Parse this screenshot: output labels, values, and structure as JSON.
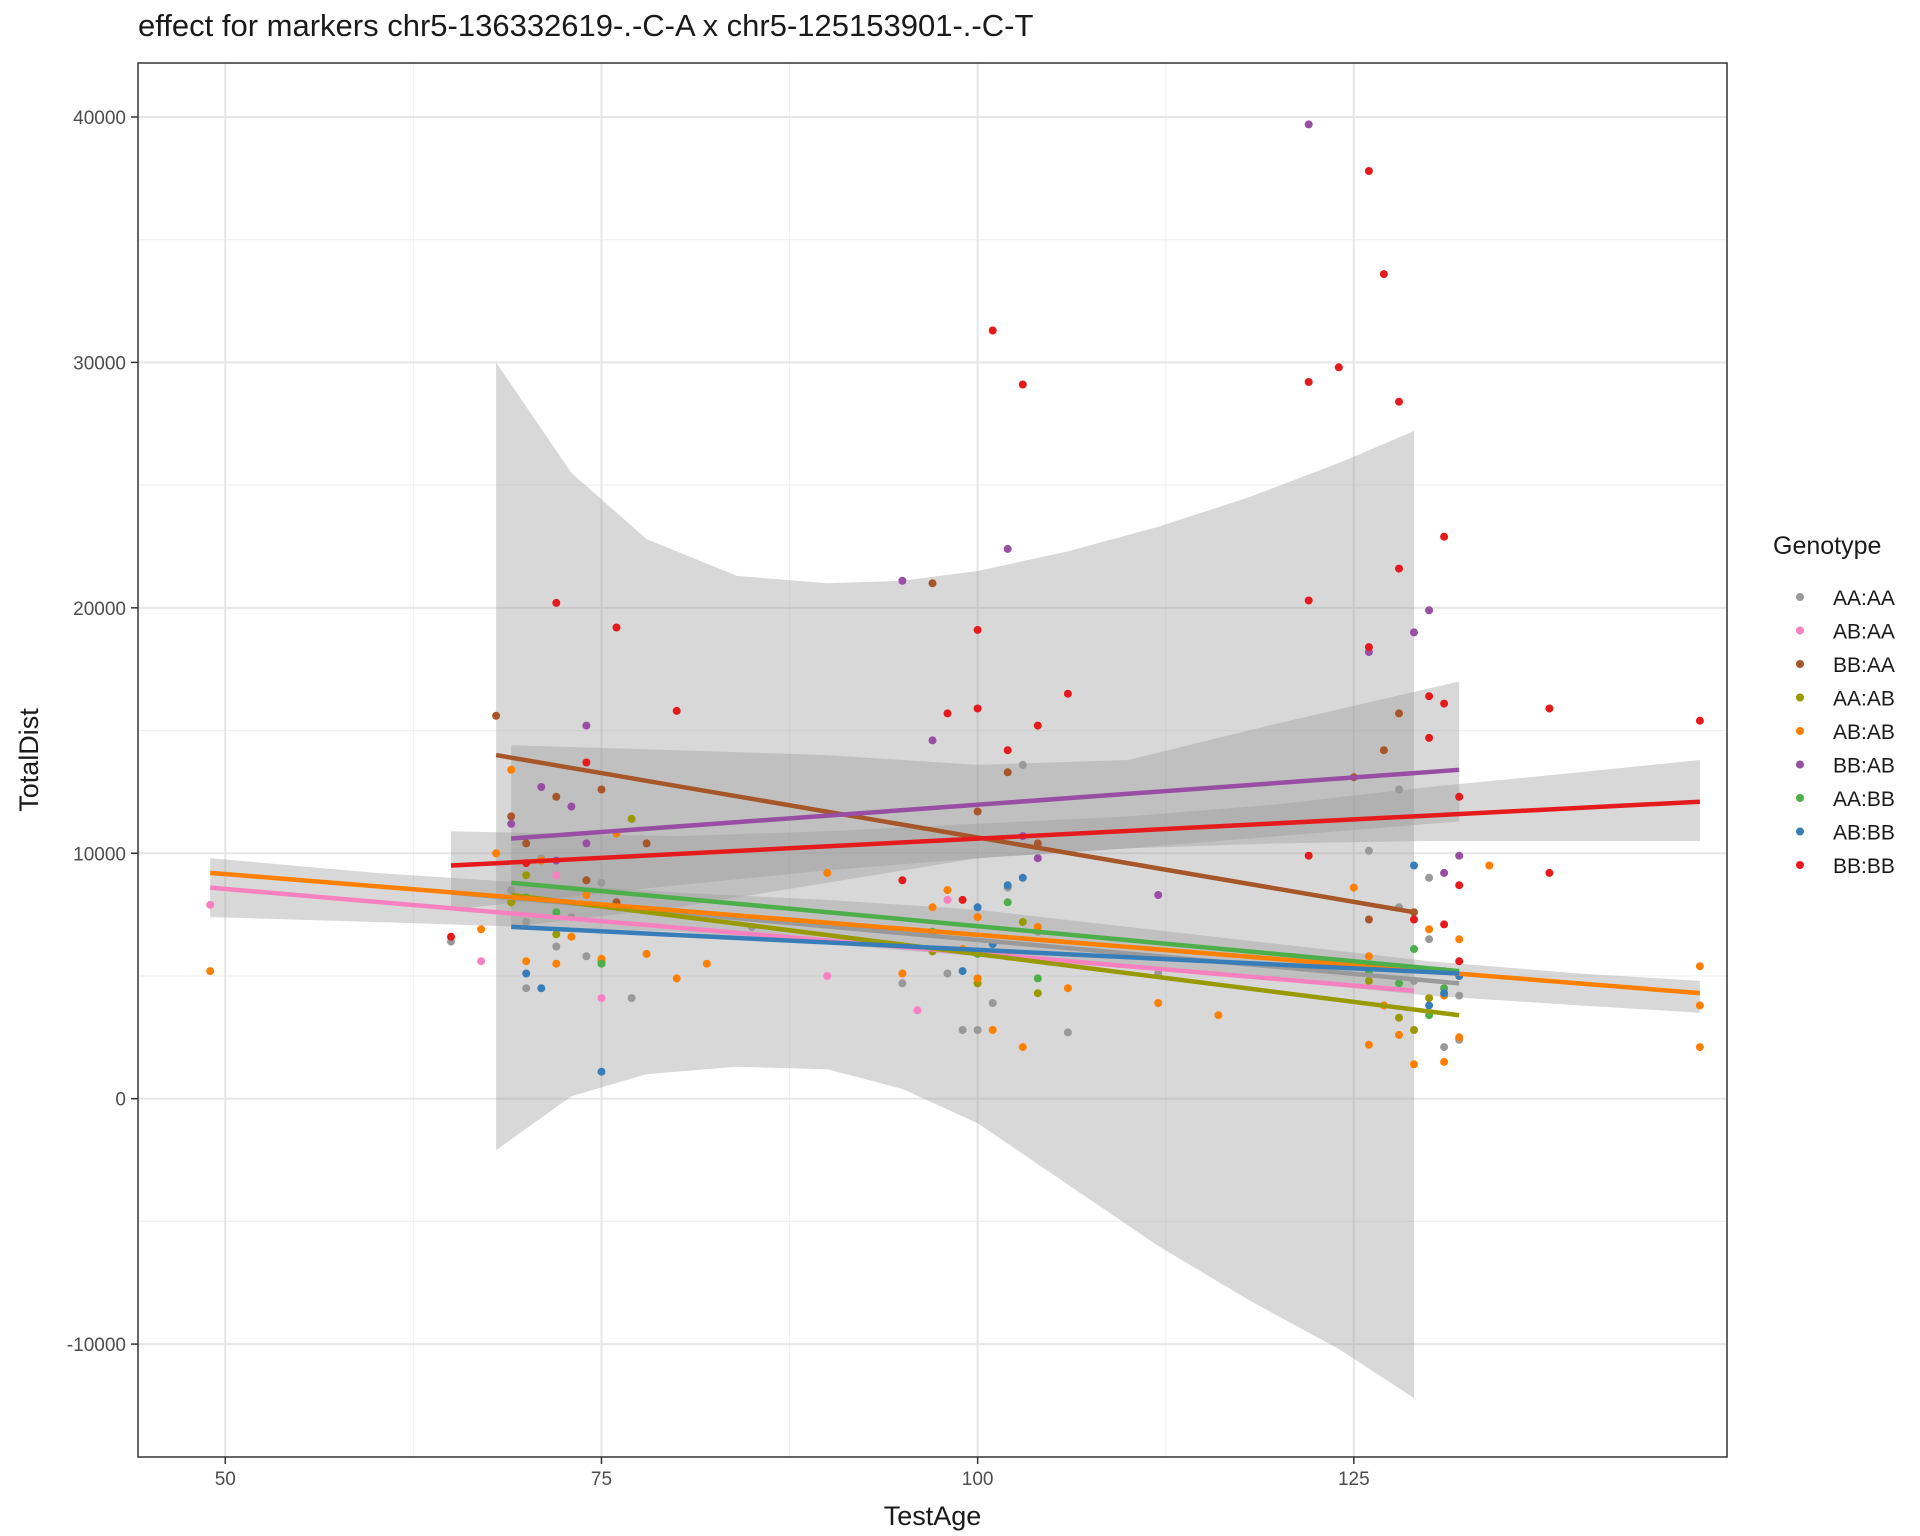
{
  "chart_data": {
    "type": "scatter",
    "title": "effect for markers chr5-136332619-.-C-A x chr5-125153901-.-C-T",
    "xlabel": "TestAge",
    "ylabel": "TotalDist",
    "xlim": [
      44.2,
      149.8
    ],
    "ylim": [
      -14600,
      42200
    ],
    "x_ticks": [
      50,
      75,
      100,
      125
    ],
    "x_tick_labels": [
      "50",
      "75",
      "100",
      "125"
    ],
    "y_ticks": [
      -10000,
      0,
      10000,
      20000,
      30000,
      40000
    ],
    "y_tick_labels": [
      "-10000",
      "0",
      "10000",
      "20000",
      "30000",
      "40000"
    ],
    "grid": true,
    "legend_position": "right",
    "legend_title": "Genotype",
    "confidence_bands": [
      {
        "x": [
          68,
          73,
          78,
          84,
          90,
          95,
          100,
          106,
          112,
          118,
          124,
          129
        ],
        "upper": [
          30000,
          25500,
          22800,
          21300,
          21000,
          21100,
          21500,
          22300,
          23300,
          24500,
          25900,
          27200
        ],
        "lower": [
          -2100,
          100,
          1000,
          1300,
          1200,
          400,
          -1000,
          -3500,
          -6000,
          -8200,
          -10200,
          -12200
        ]
      },
      {
        "x": [
          69,
          80,
          90,
          100,
          110,
          120,
          132
        ],
        "upper": [
          14400,
          14200,
          14000,
          13600,
          13800,
          15300,
          17000
        ],
        "lower": [
          7000,
          7800,
          8800,
          9800,
          10200,
          10700,
          11300
        ]
      },
      {
        "x": [
          49,
          60,
          70,
          80,
          90,
          100,
          110,
          120,
          130,
          140,
          148
        ],
        "upper": [
          9800,
          9200,
          8800,
          8400,
          8100,
          7700,
          7000,
          6300,
          5600,
          5100,
          4800
        ],
        "lower": [
          7400,
          7200,
          7000,
          6800,
          6300,
          5800,
          5300,
          4800,
          4200,
          3800,
          3500
        ]
      },
      {
        "x": [
          65,
          80,
          90,
          100,
          110,
          120,
          130,
          140,
          148
        ],
        "upper": [
          10900,
          10700,
          10900,
          11200,
          11500,
          12000,
          12700,
          13300,
          13800
        ],
        "lower": [
          7700,
          8700,
          9300,
          9800,
          10200,
          10400,
          10500,
          10500,
          10500
        ]
      }
    ],
    "series": [
      {
        "name": "AA:AA",
        "color": "#999999",
        "x": [
          65,
          69,
          70,
          70,
          71,
          72,
          73,
          74,
          75,
          77,
          85,
          95,
          97,
          98,
          99,
          100,
          100,
          100,
          101,
          102,
          103,
          104,
          106,
          112,
          126,
          127,
          128,
          128,
          129,
          130,
          130,
          131,
          131,
          132,
          132
        ],
        "y": [
          6400,
          8500,
          4500,
          7200,
          9800,
          6200,
          7400,
          5800,
          8800,
          4100,
          7000,
          4700,
          6800,
          5100,
          2800,
          2800,
          4900,
          6000,
          3900,
          8600,
          13600,
          6800,
          2700,
          5100,
          10100,
          3800,
          7800,
          12600,
          4800,
          6500,
          9000,
          2100,
          5200,
          4200,
          2400
        ]
      },
      {
        "name": "AB:AA",
        "color": "#f781bf",
        "x": [
          49,
          67,
          72,
          75,
          90,
          96,
          98
        ],
        "y": [
          7900,
          5600,
          9100,
          4100,
          5000,
          3600,
          8100
        ]
      },
      {
        "name": "BB:AA",
        "color": "#a65628",
        "x": [
          68,
          69,
          70,
          72,
          74,
          75,
          76,
          78,
          97,
          100,
          102,
          104,
          125,
          126,
          127,
          128,
          129
        ],
        "y": [
          15600,
          11500,
          10400,
          12300,
          8900,
          12600,
          8000,
          10400,
          21000,
          11700,
          13300,
          10400,
          13100,
          7300,
          14200,
          15700,
          7600
        ]
      },
      {
        "name": "AA:AB",
        "color": "#999900",
        "x": [
          69,
          70,
          72,
          75,
          77,
          97,
          100,
          103,
          104,
          126,
          128,
          129,
          130
        ],
        "y": [
          8000,
          9100,
          6700,
          5600,
          11400,
          6000,
          4700,
          7200,
          4300,
          4800,
          3300,
          2800,
          4100
        ]
      },
      {
        "name": "AB:AB",
        "color": "#ff7f00",
        "x": [
          49,
          67,
          68,
          69,
          70,
          71,
          72,
          73,
          74,
          75,
          76,
          78,
          80,
          82,
          90,
          95,
          97,
          98,
          99,
          100,
          100,
          101,
          102,
          103,
          104,
          106,
          112,
          116,
          125,
          126,
          126,
          127,
          128,
          129,
          130,
          131,
          131,
          132,
          132,
          134,
          148,
          148,
          148
        ],
        "y": [
          5200,
          6900,
          10000,
          13400,
          5600,
          9700,
          5500,
          6600,
          8300,
          5700,
          10800,
          5900,
          4900,
          5500,
          9200,
          5100,
          7800,
          8500,
          6100,
          4900,
          7400,
          2800,
          5800,
          2100,
          7000,
          4500,
          3900,
          3400,
          8600,
          2200,
          5800,
          3800,
          2600,
          1400,
          6900,
          1500,
          4200,
          2500,
          6500,
          9500,
          5400,
          3800,
          2100
        ]
      },
      {
        "name": "BB:AB",
        "color": "#984ea3",
        "x": [
          69,
          71,
          72,
          73,
          74,
          74,
          95,
          97,
          102,
          103,
          104,
          112,
          122,
          126,
          129,
          130,
          131,
          132
        ],
        "y": [
          11200,
          12700,
          9700,
          11900,
          15200,
          10400,
          21100,
          14600,
          22400,
          10700,
          9800,
          8300,
          39700,
          18200,
          19000,
          19900,
          9200,
          9900
        ]
      },
      {
        "name": "AA:BB",
        "color": "#4daf4a",
        "x": [
          70,
          72,
          75,
          97,
          100,
          102,
          104,
          126,
          128,
          129,
          130,
          131
        ],
        "y": [
          8200,
          7600,
          5500,
          6800,
          5900,
          8000,
          4900,
          5200,
          4700,
          6100,
          3400,
          4500
        ]
      },
      {
        "name": "AB:BB",
        "color": "#377eb8",
        "x": [
          70,
          71,
          75,
          99,
          100,
          101,
          102,
          103,
          129,
          130,
          131,
          132
        ],
        "y": [
          5100,
          4500,
          1100,
          5200,
          7800,
          6300,
          8700,
          9000,
          9500,
          3800,
          4300,
          5000
        ]
      },
      {
        "name": "BB:BB",
        "color": "#e41a1c",
        "x": [
          65,
          70,
          72,
          74,
          76,
          80,
          95,
          98,
          99,
          100,
          100,
          101,
          102,
          103,
          104,
          106,
          122,
          122,
          122,
          124,
          126,
          126,
          127,
          128,
          128,
          129,
          130,
          130,
          131,
          131,
          131,
          132,
          132,
          132,
          138,
          138,
          148
        ],
        "y": [
          6600,
          9600,
          20200,
          13700,
          19200,
          15800,
          8900,
          15700,
          8100,
          15900,
          19100,
          31300,
          14200,
          29100,
          15200,
          16500,
          29200,
          20300,
          9900,
          29800,
          37800,
          18400,
          33600,
          28400,
          21600,
          7300,
          16400,
          14700,
          22900,
          16100,
          7100,
          12300,
          8700,
          5600,
          15900,
          9200,
          15400
        ]
      }
    ],
    "fit_lines": [
      {
        "name": "AA:AA",
        "color": "#999999",
        "x": [
          65,
          132
        ],
        "y": [
          8400,
          4700
        ]
      },
      {
        "name": "AB:AA",
        "color": "#f781bf",
        "x": [
          49,
          129
        ],
        "y": [
          8600,
          4400
        ]
      },
      {
        "name": "BB:AA",
        "color": "#a65628",
        "x": [
          68,
          129
        ],
        "y": [
          14000,
          7600
        ]
      },
      {
        "name": "AA:AB",
        "color": "#999900",
        "x": [
          69,
          132
        ],
        "y": [
          8300,
          3400
        ]
      },
      {
        "name": "AB:AB",
        "color": "#ff7f00",
        "x": [
          49,
          148
        ],
        "y": [
          9200,
          4300
        ]
      },
      {
        "name": "BB:AB",
        "color": "#984ea3",
        "x": [
          69,
          132
        ],
        "y": [
          10600,
          13400
        ]
      },
      {
        "name": "AA:BB",
        "color": "#4daf4a",
        "x": [
          69,
          132
        ],
        "y": [
          8800,
          5200
        ]
      },
      {
        "name": "AB:BB",
        "color": "#377eb8",
        "x": [
          69,
          132
        ],
        "y": [
          7000,
          5100
        ]
      },
      {
        "name": "BB:BB",
        "color": "#e41a1c",
        "x": [
          65,
          148
        ],
        "y": [
          9500,
          12100
        ]
      }
    ]
  }
}
